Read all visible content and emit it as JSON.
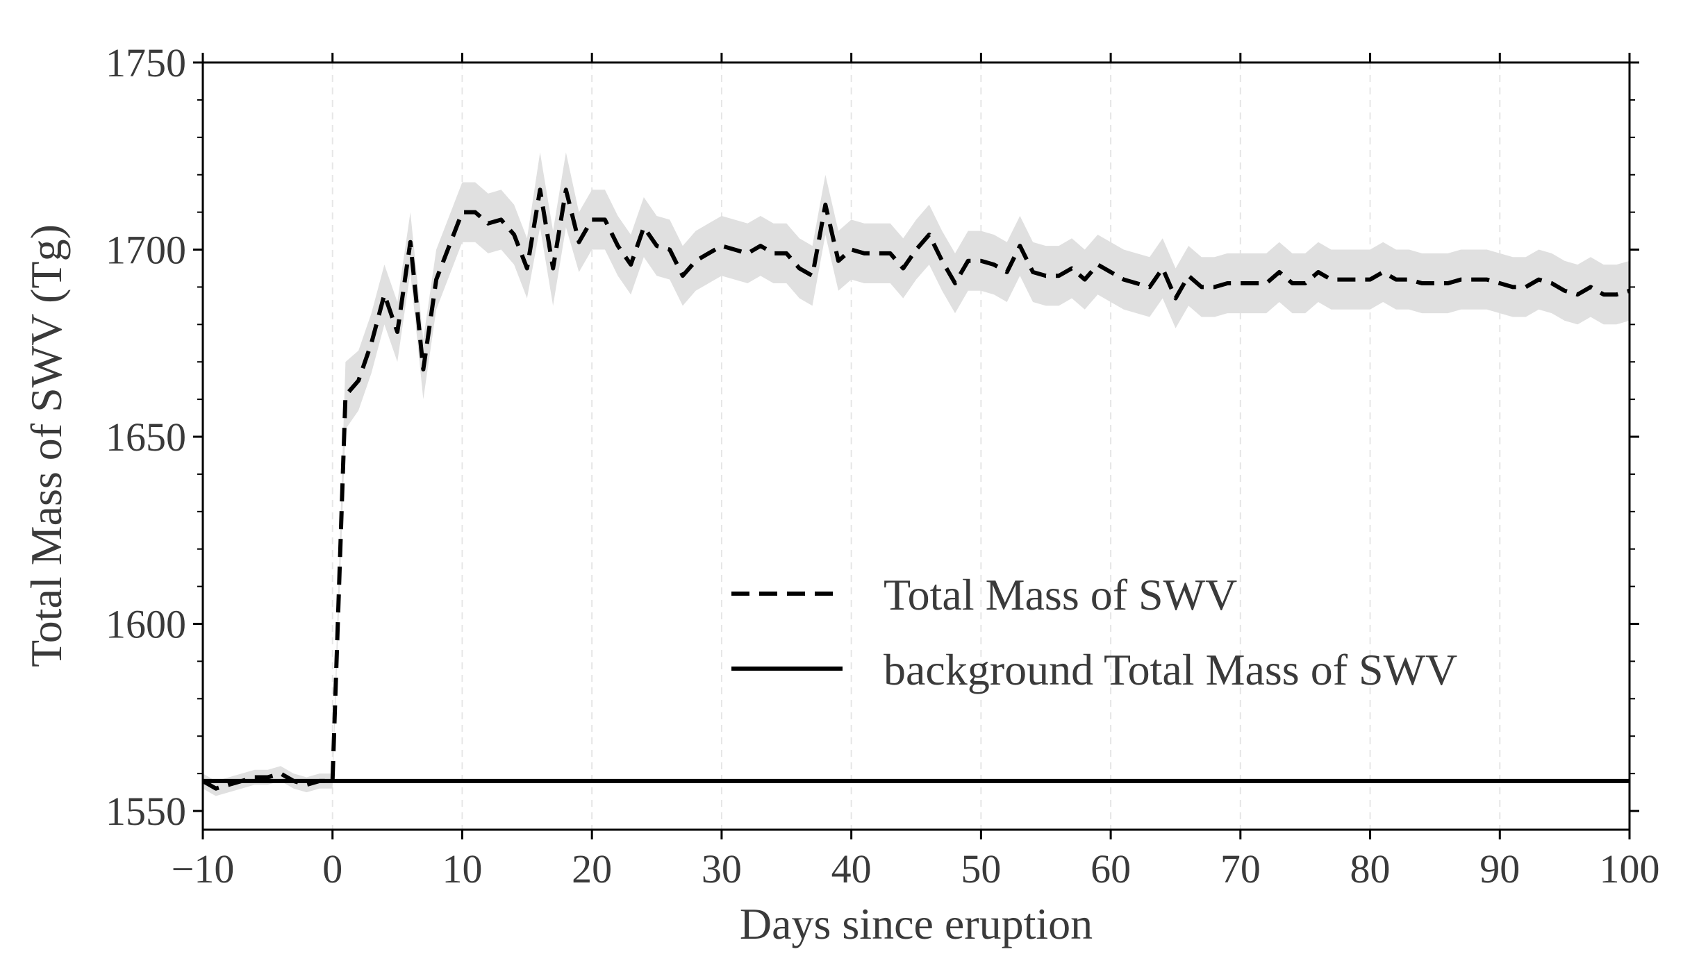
{
  "chart_data": {
    "type": "line",
    "title": "",
    "xlabel": "Days since eruption",
    "ylabel": "Total Mass of SWV (Tg)",
    "xlim": [
      -10,
      100
    ],
    "ylim": [
      1545,
      1750
    ],
    "xticks": [
      -10,
      0,
      10,
      20,
      30,
      40,
      50,
      60,
      70,
      80,
      90,
      100
    ],
    "xtick_labels": [
      "−10",
      "0",
      "10",
      "20",
      "30",
      "40",
      "50",
      "60",
      "70",
      "80",
      "90",
      "100"
    ],
    "yticks": [
      1550,
      1600,
      1650,
      1700,
      1750
    ],
    "ytick_labels": [
      "1550",
      "1600",
      "1650",
      "1700",
      "1750"
    ],
    "grid": "vertical dashed",
    "legend_position": "center-right",
    "series": [
      {
        "name": "Total Mass of SWV",
        "style": "dashed",
        "color": "#000000",
        "band_color": "#e0e0e0",
        "x": [
          -10,
          -9,
          -8,
          -7,
          -6,
          -5,
          -4,
          -3,
          -2,
          -1,
          0,
          1,
          2,
          3,
          4,
          5,
          6,
          7,
          8,
          9,
          10,
          11,
          12,
          13,
          14,
          15,
          16,
          17,
          18,
          19,
          20,
          21,
          22,
          23,
          24,
          25,
          26,
          27,
          28,
          29,
          30,
          31,
          32,
          33,
          34,
          35,
          36,
          37,
          38,
          39,
          40,
          41,
          42,
          43,
          44,
          45,
          46,
          47,
          48,
          49,
          50,
          51,
          52,
          53,
          54,
          55,
          56,
          57,
          58,
          59,
          60,
          61,
          62,
          63,
          64,
          65,
          66,
          67,
          68,
          69,
          70,
          71,
          72,
          73,
          74,
          75,
          76,
          77,
          78,
          79,
          80,
          81,
          82,
          83,
          84,
          85,
          86,
          87,
          88,
          89,
          90,
          91,
          92,
          93,
          94,
          95,
          96,
          97,
          98,
          99,
          100
        ],
        "y": [
          1558,
          1556,
          1557,
          1558,
          1559,
          1559,
          1560,
          1558,
          1557,
          1558,
          1558,
          1661,
          1665,
          1675,
          1688,
          1678,
          1702,
          1668,
          1692,
          1701,
          1710,
          1710,
          1707,
          1708,
          1704,
          1695,
          1716,
          1695,
          1716,
          1702,
          1708,
          1708,
          1701,
          1696,
          1706,
          1701,
          1700,
          1693,
          1697,
          1699,
          1701,
          1700,
          1699,
          1701,
          1699,
          1699,
          1695,
          1693,
          1712,
          1697,
          1700,
          1699,
          1699,
          1699,
          1695,
          1700,
          1704,
          1697,
          1691,
          1697,
          1697,
          1696,
          1694,
          1701,
          1694,
          1693,
          1693,
          1695,
          1692,
          1696,
          1694,
          1692,
          1691,
          1690,
          1695,
          1687,
          1693,
          1690,
          1690,
          1691,
          1691,
          1691,
          1691,
          1694,
          1691,
          1691,
          1694,
          1692,
          1692,
          1692,
          1692,
          1694,
          1692,
          1692,
          1691,
          1691,
          1691,
          1692,
          1692,
          1692,
          1691,
          1690,
          1690,
          1692,
          1691,
          1689,
          1688,
          1690,
          1688,
          1688,
          1689
        ],
        "band_low": [
          1556,
          1554,
          1555,
          1556,
          1557,
          1557,
          1558,
          1556,
          1555,
          1556,
          1556,
          1652,
          1657,
          1667,
          1680,
          1670,
          1694,
          1660,
          1684,
          1693,
          1702,
          1702,
          1699,
          1700,
          1696,
          1687,
          1706,
          1685,
          1706,
          1694,
          1700,
          1700,
          1693,
          1688,
          1698,
          1693,
          1692,
          1685,
          1689,
          1691,
          1693,
          1692,
          1691,
          1693,
          1691,
          1691,
          1687,
          1685,
          1704,
          1689,
          1692,
          1691,
          1691,
          1691,
          1687,
          1692,
          1696,
          1689,
          1683,
          1689,
          1689,
          1688,
          1686,
          1693,
          1686,
          1685,
          1685,
          1687,
          1684,
          1688,
          1686,
          1684,
          1683,
          1682,
          1687,
          1679,
          1685,
          1682,
          1682,
          1683,
          1683,
          1683,
          1683,
          1686,
          1683,
          1683,
          1686,
          1684,
          1684,
          1684,
          1684,
          1686,
          1684,
          1684,
          1683,
          1683,
          1683,
          1684,
          1684,
          1684,
          1683,
          1682,
          1682,
          1684,
          1683,
          1681,
          1680,
          1682,
          1680,
          1680,
          1681
        ],
        "band_high": [
          1560,
          1558,
          1559,
          1560,
          1561,
          1561,
          1562,
          1560,
          1559,
          1560,
          1560,
          1670,
          1673,
          1683,
          1696,
          1686,
          1710,
          1676,
          1700,
          1709,
          1718,
          1718,
          1715,
          1716,
          1712,
          1703,
          1726,
          1705,
          1726,
          1710,
          1716,
          1716,
          1709,
          1704,
          1714,
          1709,
          1708,
          1701,
          1705,
          1707,
          1709,
          1708,
          1707,
          1709,
          1707,
          1707,
          1703,
          1701,
          1720,
          1705,
          1708,
          1707,
          1707,
          1707,
          1703,
          1708,
          1712,
          1705,
          1699,
          1705,
          1705,
          1704,
          1702,
          1709,
          1702,
          1701,
          1701,
          1703,
          1700,
          1704,
          1702,
          1700,
          1699,
          1698,
          1703,
          1695,
          1701,
          1698,
          1698,
          1699,
          1699,
          1699,
          1699,
          1702,
          1699,
          1699,
          1702,
          1700,
          1700,
          1700,
          1700,
          1702,
          1700,
          1700,
          1699,
          1699,
          1699,
          1700,
          1700,
          1700,
          1699,
          1698,
          1698,
          1700,
          1699,
          1697,
          1696,
          1698,
          1696,
          1696,
          1697
        ]
      },
      {
        "name": "background Total Mass of SWV",
        "style": "solid",
        "color": "#000000",
        "x": [
          -10,
          100
        ],
        "y": [
          1558,
          1558
        ]
      }
    ]
  }
}
